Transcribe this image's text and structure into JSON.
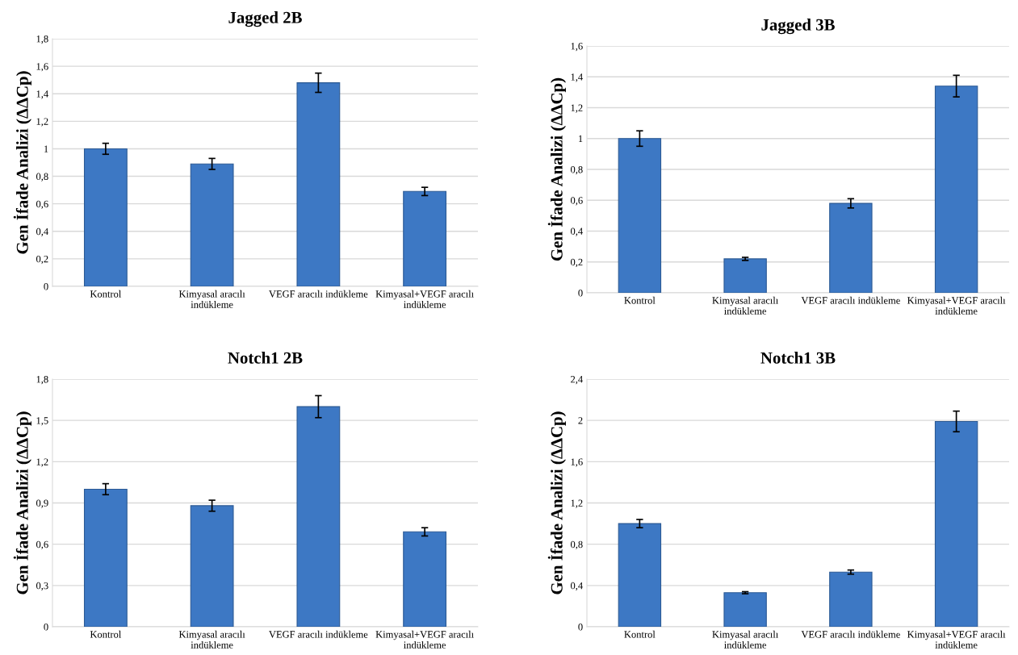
{
  "chart_data": [
    {
      "type": "bar",
      "title": "Jagged 2B",
      "ylabel": "Gen İfade Analizi (ΔΔCp)",
      "categories": [
        "Kontrol",
        "Kimyasal aracılı\nindükleme",
        "VEGF aracılı indükleme",
        "Kimyasal+VEGF aracılı\nindükleme"
      ],
      "values": [
        1.0,
        0.89,
        1.48,
        0.69
      ],
      "errors": [
        0.04,
        0.04,
        0.07,
        0.03
      ],
      "color": "#3d78c4",
      "ylim": [
        0,
        1.8
      ],
      "yticks": [
        0,
        {
          "value": 0.2,
          "label": "0,2"
        },
        {
          "value": 0.4,
          "label": "0,4"
        },
        {
          "value": 0.6,
          "label": "0,6"
        },
        {
          "value": 0.8,
          "label": "0,8"
        },
        1,
        {
          "value": 1.2,
          "label": "1,2"
        },
        {
          "value": 1.4,
          "label": "1,4"
        },
        {
          "value": 1.6,
          "label": "1,6"
        },
        {
          "value": 1.8,
          "label": "1,8"
        }
      ],
      "grid": "y"
    },
    {
      "type": "bar",
      "title": "Jagged 3B",
      "ylabel": "Gen İfade Analizi (ΔΔCp)",
      "categories": [
        "Kontrol",
        "Kimyasal aracılı\nindükleme",
        "VEGF aracılı indükleme",
        "Kimyasal+VEGF aracılı\nindükleme"
      ],
      "values": [
        1.0,
        0.22,
        0.58,
        1.34
      ],
      "errors": [
        0.05,
        0.01,
        0.03,
        0.07
      ],
      "color": "#3d78c4",
      "ylim": [
        0,
        1.6
      ],
      "yticks": [
        0,
        {
          "value": 0.2,
          "label": "0,2"
        },
        {
          "value": 0.4,
          "label": "0,4"
        },
        {
          "value": 0.6,
          "label": "0,6"
        },
        {
          "value": 0.8,
          "label": "0,8"
        },
        1,
        {
          "value": 1.2,
          "label": "1,2"
        },
        {
          "value": 1.4,
          "label": "1,4"
        },
        {
          "value": 1.6,
          "label": "1,6"
        }
      ],
      "grid": "y"
    },
    {
      "type": "bar",
      "title": "Notch1 2B",
      "ylabel": "Gen İfade Analizi (ΔΔCp)",
      "categories": [
        "Kontrol",
        "Kimyasal aracılı\nindükleme",
        "VEGF aracılı indükleme",
        "Kimyasal+VEGF aracılı\nindükleme"
      ],
      "values": [
        1.0,
        0.88,
        1.6,
        0.69
      ],
      "errors": [
        0.04,
        0.04,
        0.08,
        0.03
      ],
      "color": "#3d78c4",
      "ylim": [
        0,
        1.8
      ],
      "yticks": [
        0,
        {
          "value": 0.3,
          "label": "0,3"
        },
        {
          "value": 0.6,
          "label": "0,6"
        },
        {
          "value": 0.9,
          "label": "0,9"
        },
        {
          "value": 1.2,
          "label": "1,2"
        },
        {
          "value": 1.5,
          "label": "1,5"
        },
        {
          "value": 1.8,
          "label": "1,8"
        }
      ],
      "grid": "y"
    },
    {
      "type": "bar",
      "title": "Notch1 3B",
      "ylabel": "Gen İfade Analizi (ΔΔCp)",
      "categories": [
        "Kontrol",
        "Kimyasal aracılı\nindükleme",
        "VEGF aracılı indükleme",
        "Kimyasal+VEGF aracılı\nindükleme"
      ],
      "values": [
        1.0,
        0.33,
        0.53,
        1.99
      ],
      "errors": [
        0.04,
        0.01,
        0.02,
        0.1
      ],
      "color": "#3d78c4",
      "ylim": [
        0,
        2.4
      ],
      "yticks": [
        0,
        {
          "value": 0.4,
          "label": "0,4"
        },
        {
          "value": 0.8,
          "label": "0,8"
        },
        {
          "value": 1.2,
          "label": "1,2"
        },
        {
          "value": 1.6,
          "label": "1,6"
        },
        2,
        {
          "value": 2.4,
          "label": "2,4"
        }
      ],
      "grid": "y"
    }
  ]
}
